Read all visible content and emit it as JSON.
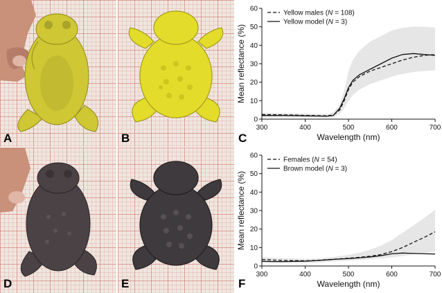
{
  "panels": {
    "A": "A",
    "B": "B",
    "C": "C",
    "D": "D",
    "E": "E",
    "F": "F"
  },
  "colors": {
    "yellow_toad": "#d3cc3a",
    "brown_toad": "#4a4245",
    "envelope": "#e6e6e6"
  },
  "chart_data": [
    {
      "type": "line",
      "xlabel": "Wavelength (nm)",
      "ylabel": "Mean reflectance (%)",
      "xlim": [
        300,
        700
      ],
      "ylim": [
        0,
        60
      ],
      "xticks": [
        300,
        400,
        500,
        600,
        700
      ],
      "yticks": [
        0,
        10,
        20,
        30,
        40,
        50,
        60
      ],
      "legend_position": "top-left",
      "x": [
        300,
        325,
        350,
        375,
        400,
        425,
        450,
        465,
        480,
        490,
        500,
        510,
        525,
        550,
        575,
        600,
        625,
        650,
        675,
        700
      ],
      "series": [
        {
          "name": "Yellow males (N = 108)",
          "label_parts": [
            "Yellow males (",
            "N",
            " = 108)"
          ],
          "style": "dashed",
          "values": [
            2.5,
            2.4,
            2.3,
            2.2,
            2.0,
            1.9,
            1.8,
            2.2,
            5,
            10,
            16,
            20,
            23,
            26,
            28,
            30,
            32,
            33.5,
            34.5,
            35
          ]
        },
        {
          "name": "Yellow model (N = 3)",
          "label_parts": [
            "Yellow model (",
            "N",
            " = 3)"
          ],
          "style": "solid",
          "values": [
            2.0,
            2.0,
            2.0,
            1.9,
            1.8,
            1.7,
            1.6,
            2.0,
            6,
            11,
            17,
            21,
            24,
            27,
            30,
            33,
            35,
            35.5,
            35,
            34.5
          ]
        }
      ],
      "envelope_upper": [
        3.5,
        3.4,
        3.3,
        3.2,
        3.0,
        2.9,
        2.8,
        3.5,
        8,
        15,
        26,
        32,
        37,
        42,
        45,
        48,
        49.5,
        50,
        50,
        49.5
      ],
      "envelope_lower": [
        1.0,
        1.0,
        0.9,
        0.9,
        0.8,
        0.8,
        0.7,
        1.0,
        3,
        6,
        10,
        13,
        16,
        19,
        21,
        23,
        24.5,
        25.5,
        26,
        26.5
      ]
    },
    {
      "type": "line",
      "xlabel": "Wavelength (nm)",
      "ylabel": "Mean reflectance (%)",
      "xlim": [
        300,
        700
      ],
      "ylim": [
        0,
        60
      ],
      "xticks": [
        300,
        400,
        500,
        600,
        700
      ],
      "yticks": [
        0,
        10,
        20,
        30,
        40,
        50,
        60
      ],
      "legend_position": "top-left",
      "x": [
        300,
        325,
        350,
        375,
        400,
        425,
        450,
        475,
        500,
        525,
        550,
        575,
        600,
        625,
        650,
        675,
        700
      ],
      "series": [
        {
          "name": "Females (N = 54)",
          "label_parts": [
            "Females (",
            "N",
            " = 54)"
          ],
          "style": "dashed",
          "values": [
            3.5,
            3.2,
            3.0,
            2.9,
            2.8,
            3.0,
            3.4,
            3.8,
            4.2,
            4.7,
            5.3,
            6.2,
            7.8,
            10,
            12.8,
            15.5,
            18.5
          ]
        },
        {
          "name": "Brown model (N = 3)",
          "label_parts": [
            "Brown model (",
            "N",
            " = 3)"
          ],
          "style": "solid",
          "values": [
            2.5,
            2.4,
            2.4,
            2.5,
            2.6,
            2.9,
            3.3,
            3.7,
            4.0,
            4.4,
            4.9,
            5.6,
            6.6,
            7.0,
            6.8,
            6.6,
            6.5
          ]
        }
      ],
      "envelope_upper": [
        4.8,
        4.5,
        4.2,
        4.0,
        3.9,
        4.0,
        4.5,
        5.2,
        6.0,
        7.2,
        8.8,
        11,
        14,
        18,
        22,
        26,
        30.5
      ],
      "envelope_lower": [
        1.8,
        1.7,
        1.6,
        1.6,
        1.6,
        1.8,
        2.2,
        2.6,
        2.9,
        3.2,
        3.6,
        4.1,
        4.7,
        5.4,
        6.2,
        7.0,
        7.8
      ]
    }
  ]
}
